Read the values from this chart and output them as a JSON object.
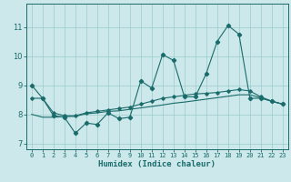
{
  "xlabel": "Humidex (Indice chaleur)",
  "bg_color": "#cce8ea",
  "grid_color": "#99cccc",
  "line_color": "#1a6b6b",
  "xlim": [
    -0.5,
    23.5
  ],
  "ylim": [
    6.8,
    11.8
  ],
  "xticks": [
    0,
    1,
    2,
    3,
    4,
    5,
    6,
    7,
    8,
    9,
    10,
    11,
    12,
    13,
    14,
    15,
    16,
    17,
    18,
    19,
    20,
    21,
    22,
    23
  ],
  "yticks": [
    7,
    8,
    9,
    10,
    11
  ],
  "x": [
    0,
    1,
    2,
    3,
    4,
    5,
    6,
    7,
    8,
    9,
    10,
    11,
    12,
    13,
    14,
    15,
    16,
    17,
    18,
    19,
    20,
    21,
    22,
    23
  ],
  "line1": [
    9.0,
    8.55,
    7.95,
    7.9,
    7.35,
    7.7,
    7.65,
    8.05,
    7.85,
    7.9,
    9.15,
    8.9,
    10.05,
    9.85,
    8.6,
    8.6,
    9.4,
    10.5,
    11.05,
    10.75,
    8.55,
    8.55,
    8.45,
    8.35
  ],
  "line2": [
    8.55,
    8.55,
    8.05,
    7.95,
    7.95,
    8.05,
    8.1,
    8.15,
    8.2,
    8.25,
    8.35,
    8.45,
    8.55,
    8.6,
    8.65,
    8.7,
    8.72,
    8.75,
    8.8,
    8.85,
    8.8,
    8.6,
    8.45,
    8.35
  ],
  "line3": [
    8.0,
    7.9,
    7.9,
    7.92,
    7.93,
    8.02,
    8.05,
    8.1,
    8.12,
    8.17,
    8.22,
    8.27,
    8.32,
    8.38,
    8.42,
    8.47,
    8.52,
    8.57,
    8.62,
    8.67,
    8.67,
    8.57,
    8.45,
    8.35
  ]
}
